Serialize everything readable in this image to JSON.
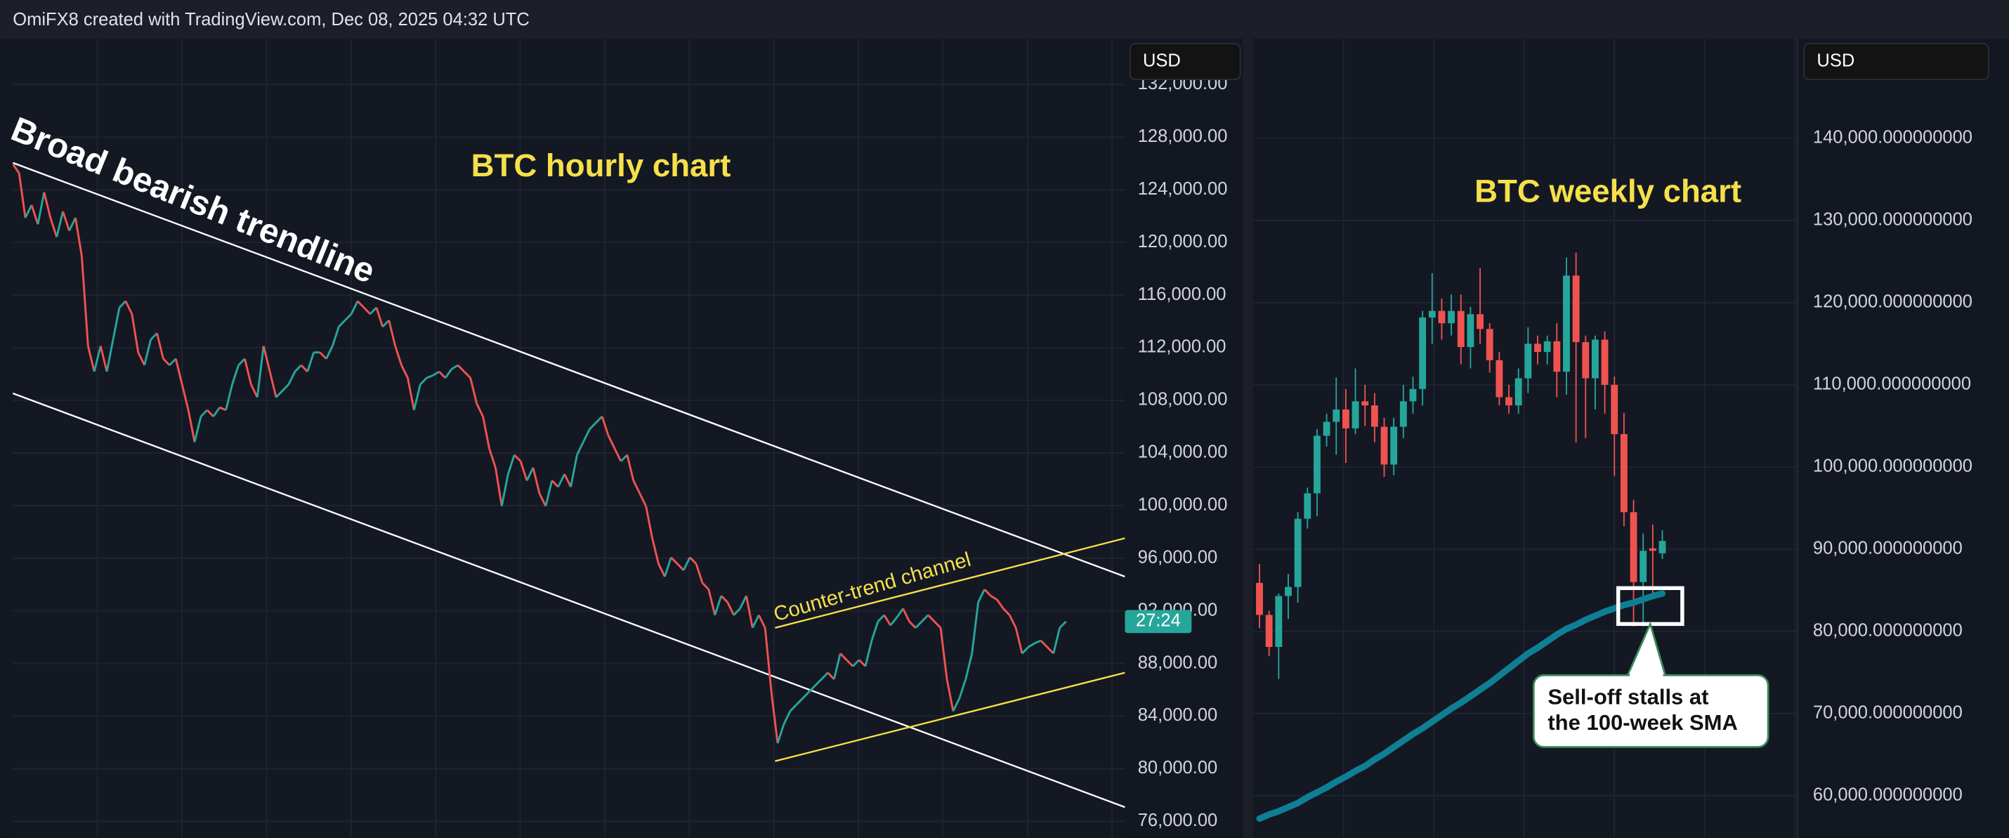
{
  "header": {
    "text": "OmiFX8 created with TradingView.com, Dec 08, 2025 04:32 UTC"
  },
  "chart_data": [
    {
      "type": "line",
      "title": "BTC hourly chart",
      "title_color": "#f5e04a",
      "currency": "USD",
      "annotations": [
        "Broad bearish trendline",
        "Counter-trend channel"
      ],
      "countdown": "27:24",
      "xlim": [
        0,
        177.4
      ],
      "ylim": [
        74740,
        135500
      ],
      "grid": true,
      "up_color": "#26a69a",
      "down_color": "#ef5350",
      "yticks": [
        {
          "value": 76000,
          "label": "76,000.00"
        },
        {
          "value": 80000,
          "label": "80,000.00"
        },
        {
          "value": 84000,
          "label": "84,000.00"
        },
        {
          "value": 88000,
          "label": "88,000.00"
        },
        {
          "value": 92000,
          "label": "92,000.00"
        },
        {
          "value": 96000,
          "label": "96,000.00"
        },
        {
          "value": 100000,
          "label": "100,000.00"
        },
        {
          "value": 104000,
          "label": "104,000.00"
        },
        {
          "value": 108000,
          "label": "108,000.00"
        },
        {
          "value": 112000,
          "label": "112,000.00"
        },
        {
          "value": 116000,
          "label": "116,000.00"
        },
        {
          "value": 120000,
          "label": "120,000.00"
        },
        {
          "value": 124000,
          "label": "124,000.00"
        },
        {
          "value": 128000,
          "label": "128,000.00"
        },
        {
          "value": 132000,
          "label": "132,000.00"
        }
      ],
      "values": [
        125960,
        125270,
        121870,
        122840,
        121380,
        123810,
        121870,
        120410,
        122350,
        120890,
        121870,
        118950,
        112130,
        110180,
        112130,
        110180,
        112620,
        115050,
        115540,
        114560,
        111640,
        110670,
        112620,
        113100,
        111160,
        110670,
        111160,
        109210,
        107260,
        104830,
        106770,
        107260,
        106770,
        107460,
        107260,
        109210,
        110670,
        111160,
        109210,
        108230,
        112130,
        110180,
        108230,
        108720,
        109210,
        110180,
        110670,
        110180,
        111640,
        111640,
        111160,
        112130,
        113590,
        114080,
        114560,
        115540,
        115050,
        114560,
        115050,
        113590,
        114080,
        112130,
        110670,
        109700,
        107260,
        109210,
        109700,
        109890,
        110180,
        109700,
        110380,
        110670,
        110180,
        109700,
        107750,
        106770,
        104340,
        102880,
        99960,
        102390,
        103850,
        103370,
        101900,
        102880,
        100930,
        99960,
        101900,
        101420,
        102390,
        101420,
        103850,
        104830,
        105800,
        106290,
        106770,
        105310,
        104340,
        103370,
        103850,
        101900,
        100930,
        99960,
        97520,
        95580,
        94600,
        96060,
        95580,
        95090,
        96060,
        95580,
        94120,
        93630,
        91680,
        93140,
        92660,
        91680,
        92170,
        93140,
        90710,
        91680,
        90710,
        85840,
        81940,
        83400,
        84380,
        84870,
        85350,
        85840,
        86330,
        86810,
        87300,
        86810,
        88760,
        88270,
        87790,
        88270,
        87790,
        89730,
        91190,
        91680,
        90900,
        91490,
        92170,
        91190,
        90710,
        91190,
        91680,
        91190,
        90710,
        86810,
        84380,
        85350,
        86810,
        88760,
        92660,
        93630,
        93140,
        92850,
        92170,
        91680,
        90710,
        88760,
        89250,
        89540,
        89730,
        89250,
        88760,
        90710,
        91190
      ],
      "trendlines": [
        {
          "x": [
            0,
            177.4
          ],
          "values": [
            126050,
            94600
          ],
          "color": "#ffffff"
        },
        {
          "x": [
            0,
            177.4
          ],
          "values": [
            108530,
            77080
          ],
          "color": "#ffffff"
        },
        {
          "x": [
            121.6,
            177.4
          ],
          "values": [
            90710,
            97520
          ],
          "color": "#f5e04a"
        },
        {
          "x": [
            121.6,
            177.4
          ],
          "values": [
            80580,
            87300
          ],
          "color": "#f5e04a"
        }
      ]
    },
    {
      "type": "candlestick",
      "title": "BTC weekly chart",
      "title_color": "#f5e04a",
      "currency": "USD",
      "annotation": [
        "Sell-off stalls at",
        "the 100-week SMA"
      ],
      "xlim": [
        -0.67,
        56.1
      ],
      "ylim": [
        54850,
        152160
      ],
      "grid": true,
      "up_color": "#26a69a",
      "down_color": "#ef5350",
      "yticks": [
        {
          "value": 60000,
          "label": "60,000.000000000"
        },
        {
          "value": 70000,
          "label": "70,000.000000000"
        },
        {
          "value": 80000,
          "label": "80,000.000000000"
        },
        {
          "value": 90000,
          "label": "90,000.000000000"
        },
        {
          "value": 100000,
          "label": "100,000.000000000"
        },
        {
          "value": 110000,
          "label": "110,000.000000000"
        },
        {
          "value": 120000,
          "label": "120,000.000000000"
        },
        {
          "value": 130000,
          "label": "130,000.000000000"
        },
        {
          "value": 140000,
          "label": "140,000.000000000"
        }
      ],
      "open": [
        85900,
        82000,
        78100,
        84300,
        85400,
        93700,
        96800,
        103800,
        105500,
        107000,
        104700,
        108000,
        107500,
        104900,
        100300,
        104900,
        108000,
        109500,
        118200,
        119000,
        117500,
        119000,
        114600,
        118600,
        116800,
        113000,
        108500,
        107500,
        110800,
        115000,
        114000,
        115300,
        111600,
        123300,
        115200,
        110800,
        115500,
        110000,
        104000,
        94500,
        86000,
        90100,
        89500
      ],
      "high": [
        88200,
        82500,
        84600,
        87000,
        94500,
        97500,
        104600,
        106500,
        110900,
        109500,
        112000,
        110000,
        109000,
        106000,
        106000,
        110000,
        111000,
        119000,
        123600,
        120500,
        121000,
        121000,
        119500,
        124200,
        117500,
        114000,
        110000,
        112000,
        117000,
        116000,
        116000,
        117500,
        125500,
        126100,
        116000,
        116000,
        116500,
        111000,
        106600,
        96000,
        91900,
        93000,
        92300
      ],
      "low": [
        80400,
        77000,
        74200,
        81500,
        83500,
        92500,
        94000,
        102500,
        101500,
        100500,
        104000,
        105000,
        103000,
        98800,
        99000,
        103500,
        106500,
        107500,
        115000,
        115500,
        116000,
        112500,
        112000,
        115000,
        111500,
        107500,
        106500,
        106500,
        109000,
        112500,
        112500,
        108500,
        108800,
        103000,
        103500,
        107000,
        106500,
        98900,
        92800,
        80600,
        80600,
        83900,
        88800
      ],
      "close": [
        82000,
        78100,
        84300,
        85400,
        93700,
        96800,
        103800,
        105500,
        107000,
        104700,
        108000,
        107500,
        104900,
        100300,
        104900,
        108000,
        109500,
        118200,
        119000,
        117500,
        119000,
        114600,
        118600,
        116800,
        113000,
        108500,
        107500,
        110800,
        115000,
        114000,
        115300,
        111600,
        123300,
        115200,
        110800,
        115500,
        110000,
        104000,
        94500,
        86000,
        89800,
        89800,
        91000
      ],
      "sma": {
        "color": "#0e7f95",
        "values": [
          57200,
          57700,
          58100,
          58600,
          59100,
          59800,
          60400,
          61000,
          61700,
          62300,
          63000,
          63600,
          64400,
          65100,
          65900,
          66700,
          67500,
          68200,
          69000,
          69800,
          70600,
          71300,
          72100,
          72900,
          73700,
          74600,
          75500,
          76400,
          77300,
          78000,
          78800,
          79600,
          80300,
          80800,
          81400,
          81900,
          82400,
          82800,
          83200,
          83500,
          83900,
          84300,
          84600
        ]
      }
    }
  ]
}
